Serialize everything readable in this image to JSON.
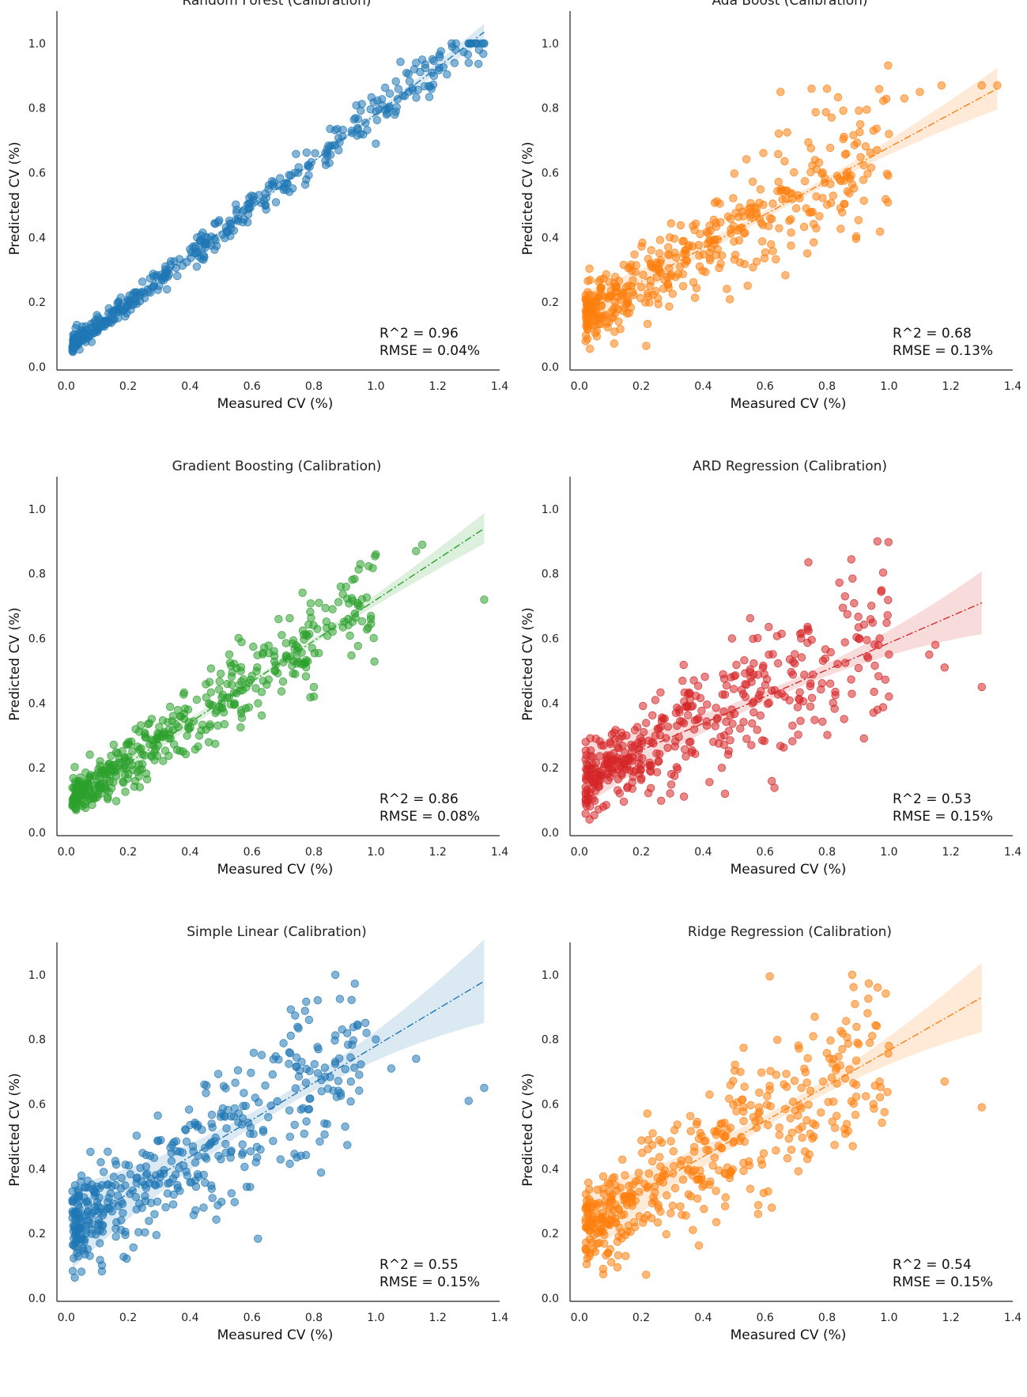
{
  "chart_data": [
    {
      "type": "scatter",
      "title": "Random Forest (Calibration)",
      "xlabel": "Measured CV (%)",
      "ylabel": "Predicted CV (%)",
      "xlim": [
        -0.03,
        1.4
      ],
      "ylim": [
        -0.01,
        1.1
      ],
      "xticks": [
        "0.0",
        "0.2",
        "0.4",
        "0.6",
        "0.8",
        "1.0",
        "1.2",
        "1.4"
      ],
      "yticks": [
        "0.0",
        "0.2",
        "0.4",
        "0.6",
        "0.8",
        "1.0"
      ],
      "color": "#1f77b4",
      "fit": {
        "x": [
          0.02,
          1.35
        ],
        "y": [
          0.07,
          1.035
        ],
        "band": 0.012
      },
      "stats": {
        "r2": "R^2 = 0.96",
        "rmse": "RMSE = 0.04%"
      },
      "points": {
        "n": 420,
        "seed": 11,
        "xmin": 0.02,
        "xmax": 1.35,
        "slope": 0.726,
        "intercept": 0.055,
        "noise": 0.022,
        "xdist": "skew"
      },
      "outliers": [
        [
          1.35,
          1.0
        ],
        [
          1.3,
          0.94
        ],
        [
          1.15,
          0.95
        ],
        [
          1.13,
          0.94
        ],
        [
          1.0,
          0.69
        ],
        [
          0.95,
          0.72
        ],
        [
          0.85,
          0.63
        ]
      ]
    },
    {
      "type": "scatter",
      "title": "Ada Boost (Calibration)",
      "xlabel": "Measured CV (%)",
      "ylabel": "Predicted CV (%)",
      "xlim": [
        -0.03,
        1.4
      ],
      "ylim": [
        -0.01,
        1.1
      ],
      "xticks": [
        "0.0",
        "0.2",
        "0.4",
        "0.6",
        "0.8",
        "1.0",
        "1.2",
        "1.4"
      ],
      "yticks": [
        "0.0",
        "0.2",
        "0.4",
        "0.6",
        "0.8",
        "1.0"
      ],
      "color": "#ff7f0e",
      "fit": {
        "x": [
          0.02,
          1.35
        ],
        "y": [
          0.17,
          0.86
        ],
        "band": 0.03
      },
      "stats": {
        "r2": "R^2 = 0.68",
        "rmse": "RMSE = 0.13%"
      },
      "points": {
        "n": 430,
        "seed": 23,
        "xmin": 0.02,
        "xmax": 1.0,
        "slope": 0.52,
        "intercept": 0.16,
        "noise": 0.07,
        "xdist": "skew"
      },
      "outliers": [
        [
          1.35,
          0.87
        ],
        [
          1.3,
          0.87
        ],
        [
          1.17,
          0.87
        ],
        [
          1.1,
          0.85
        ],
        [
          1.05,
          0.83
        ],
        [
          0.8,
          0.86
        ],
        [
          0.75,
          0.86
        ],
        [
          0.65,
          0.85
        ],
        [
          1.0,
          0.72
        ],
        [
          0.95,
          0.73
        ]
      ]
    },
    {
      "type": "scatter",
      "title": "Gradient Boosting (Calibration)",
      "xlabel": "Measured CV (%)",
      "ylabel": "Predicted CV (%)",
      "xlim": [
        -0.03,
        1.4
      ],
      "ylim": [
        -0.01,
        1.1
      ],
      "xticks": [
        "0.0",
        "0.2",
        "0.4",
        "0.6",
        "0.8",
        "1.0",
        "1.2",
        "1.4"
      ],
      "yticks": [
        "0.0",
        "0.2",
        "0.4",
        "0.6",
        "0.8",
        "1.0"
      ],
      "color": "#2ca02c",
      "fit": {
        "x": [
          0.02,
          1.35
        ],
        "y": [
          0.1,
          0.94
        ],
        "band": 0.022
      },
      "stats": {
        "r2": "R^2 = 0.86",
        "rmse": "RMSE = 0.08%"
      },
      "points": {
        "n": 430,
        "seed": 37,
        "xmin": 0.02,
        "xmax": 1.0,
        "slope": 0.63,
        "intercept": 0.09,
        "noise": 0.05,
        "xdist": "skew"
      },
      "outliers": [
        [
          1.35,
          0.72
        ],
        [
          1.15,
          0.89
        ],
        [
          1.13,
          0.87
        ],
        [
          1.0,
          0.86
        ],
        [
          0.95,
          0.83
        ],
        [
          0.8,
          0.45
        ],
        [
          0.8,
          0.42
        ]
      ]
    },
    {
      "type": "scatter",
      "title": "ARD Regression (Calibration)",
      "xlabel": "Measured CV (%)",
      "ylabel": "Predicted CV (%)",
      "xlim": [
        -0.03,
        1.4
      ],
      "ylim": [
        -0.01,
        1.1
      ],
      "xticks": [
        "0.0",
        "0.2",
        "0.4",
        "0.6",
        "0.8",
        "1.0",
        "1.2",
        "1.4"
      ],
      "yticks": [
        "0.0",
        "0.2",
        "0.4",
        "0.6",
        "0.8",
        "1.0"
      ],
      "color": "#d62728",
      "fit": {
        "x": [
          0.02,
          1.3
        ],
        "y": [
          0.18,
          0.71
        ],
        "band": 0.045
      },
      "stats": {
        "r2": "R^2 = 0.53",
        "rmse": "RMSE = 0.15%"
      },
      "points": {
        "n": 430,
        "seed": 53,
        "xmin": 0.02,
        "xmax": 1.0,
        "slope": 0.48,
        "intercept": 0.15,
        "noise": 0.09,
        "xdist": "skew"
      },
      "outliers": [
        [
          1.3,
          0.45
        ],
        [
          1.18,
          0.51
        ],
        [
          1.15,
          0.58
        ],
        [
          1.13,
          0.55
        ],
        [
          1.0,
          0.42
        ],
        [
          0.97,
          0.6
        ]
      ]
    },
    {
      "type": "scatter",
      "title": "Simple Linear (Calibration)",
      "xlabel": "Measured CV (%)",
      "ylabel": "Predicted CV (%)",
      "xlim": [
        -0.03,
        1.4
      ],
      "ylim": [
        -0.01,
        1.1
      ],
      "xticks": [
        "0.0",
        "0.2",
        "0.4",
        "0.6",
        "0.8",
        "1.0",
        "1.2",
        "1.4"
      ],
      "yticks": [
        "0.0",
        "0.2",
        "0.4",
        "0.6",
        "0.8",
        "1.0"
      ],
      "color": "#1f77b4",
      "fit": {
        "x": [
          0.02,
          1.35
        ],
        "y": [
          0.22,
          0.98
        ],
        "band": 0.06
      },
      "stats": {
        "r2": "R^2 = 0.55",
        "rmse": "RMSE = 0.15%"
      },
      "points": {
        "n": 430,
        "seed": 71,
        "xmin": 0.02,
        "xmax": 0.97,
        "slope": 0.58,
        "intercept": 0.21,
        "noise": 0.1,
        "xdist": "skew"
      },
      "outliers": [
        [
          1.35,
          0.65
        ],
        [
          1.3,
          0.61
        ],
        [
          1.13,
          0.74
        ],
        [
          1.05,
          0.71
        ],
        [
          1.0,
          0.8
        ],
        [
          0.97,
          0.82
        ]
      ]
    },
    {
      "type": "scatter",
      "title": "Ridge Regression (Calibration)",
      "xlabel": "Measured CV (%)",
      "ylabel": "Predicted CV (%)",
      "xlim": [
        -0.03,
        1.4
      ],
      "ylim": [
        -0.01,
        1.1
      ],
      "xticks": [
        "0.0",
        "0.2",
        "0.4",
        "0.6",
        "0.8",
        "1.0",
        "1.2",
        "1.4"
      ],
      "yticks": [
        "0.0",
        "0.2",
        "0.4",
        "0.6",
        "0.8",
        "1.0"
      ],
      "color": "#ff7f0e",
      "fit": {
        "x": [
          0.02,
          1.3
        ],
        "y": [
          0.23,
          0.93
        ],
        "band": 0.05
      },
      "stats": {
        "r2": "R^2 = 0.54",
        "rmse": "RMSE = 0.15%"
      },
      "points": {
        "n": 430,
        "seed": 89,
        "xmin": 0.02,
        "xmax": 1.0,
        "slope": 0.56,
        "intercept": 0.2,
        "noise": 0.1,
        "xdist": "skew"
      },
      "outliers": [
        [
          1.3,
          0.59
        ],
        [
          1.18,
          0.67
        ],
        [
          1.0,
          0.78
        ],
        [
          0.97,
          0.67
        ],
        [
          0.95,
          0.6
        ]
      ]
    }
  ]
}
